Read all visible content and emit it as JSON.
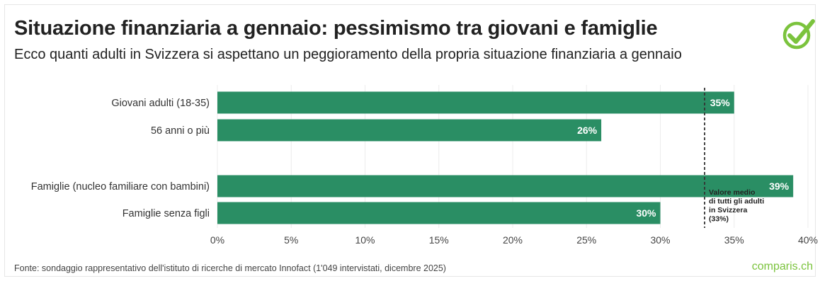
{
  "title": "Situazione finanziaria a gennaio: pessimismo tra giovani e famiglie",
  "subtitle": "Ecco quanti adulti in Svizzera si aspettano un peggioramento della propria situazione finanziaria a gennaio",
  "source": "Fonte: sondaggio rappresentativo dell'istituto di ricerche di mercato Innofact (1'049 intervistati, dicembre 2025)",
  "brand": "comparis.ch",
  "logo_icon": "check-circle-icon",
  "colors": {
    "bar": "#2a8e64",
    "brand": "#7bc33d",
    "reference_line": "#333333"
  },
  "chart_data": {
    "type": "bar",
    "orientation": "horizontal",
    "categories": [
      "Giovani adulti (18-35)",
      "56 anni o più",
      "Famiglie (nucleo familiare con bambini)",
      "Famiglie senza figli"
    ],
    "groups": [
      [
        0,
        1
      ],
      [
        2,
        3
      ]
    ],
    "values": [
      35,
      26,
      39,
      30
    ],
    "value_labels": [
      "35%",
      "26%",
      "39%",
      "30%"
    ],
    "xlim": [
      0,
      40
    ],
    "ticks": [
      0,
      5,
      10,
      15,
      20,
      25,
      30,
      35,
      40
    ],
    "tick_labels": [
      "0%",
      "5%",
      "10%",
      "15%",
      "20%",
      "25%",
      "30%",
      "35%",
      "40%"
    ],
    "grid": "vertical",
    "reference_line": {
      "value": 33,
      "label_lines": [
        "Valore medio",
        "di tutti gli adulti",
        "in Svizzera",
        "(33%)"
      ]
    }
  }
}
